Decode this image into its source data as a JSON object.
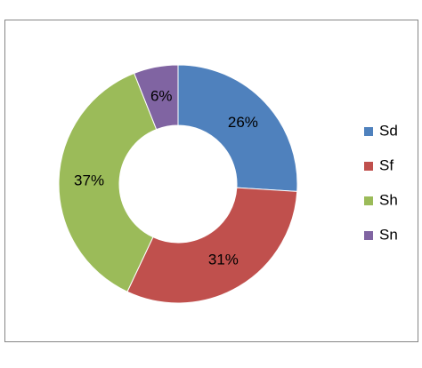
{
  "chart_data": {
    "type": "pie",
    "donut": true,
    "categories": [
      "Sd",
      "Sf",
      "Sh",
      "Sn"
    ],
    "values": [
      26,
      31,
      37,
      6
    ],
    "value_labels": [
      "26%",
      "31%",
      "37%",
      "6%"
    ],
    "colors": [
      "#4f81bd",
      "#c0504d",
      "#9bbb59",
      "#8064a2"
    ],
    "legend": "right"
  }
}
